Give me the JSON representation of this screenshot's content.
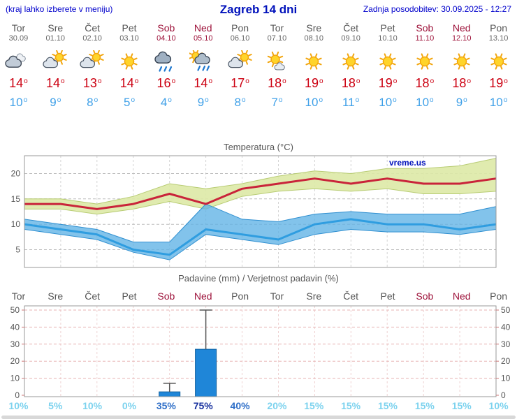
{
  "header": {
    "left_note": "(kraj lahko izberete v meniju)",
    "title": "Zagreb 14 dni",
    "updated_label": "Zadnja posodobitev: 30.09.2025 - 12:27"
  },
  "units": {
    "degree": "o",
    "percent": "%"
  },
  "forecast_days": [
    {
      "name": "Tor",
      "date": "30.09",
      "icon": "cloudy",
      "tmax": 14,
      "tmin": 10,
      "weekend": false
    },
    {
      "name": "Sre",
      "date": "01.10",
      "icon": "partly-cloudy",
      "tmax": 14,
      "tmin": 9,
      "weekend": false
    },
    {
      "name": "Čet",
      "date": "02.10",
      "icon": "partly-cloudy",
      "tmax": 13,
      "tmin": 8,
      "weekend": false
    },
    {
      "name": "Pet",
      "date": "03.10",
      "icon": "sunny",
      "tmax": 14,
      "tmin": 5,
      "weekend": false
    },
    {
      "name": "Sob",
      "date": "04.10",
      "icon": "rain",
      "tmax": 16,
      "tmin": 4,
      "weekend": true
    },
    {
      "name": "Ned",
      "date": "05.10",
      "icon": "sun-rain",
      "tmax": 14,
      "tmin": 9,
      "weekend": true
    },
    {
      "name": "Pon",
      "date": "06.10",
      "icon": "partly-cloudy",
      "tmax": 17,
      "tmin": 8,
      "weekend": false
    },
    {
      "name": "Tor",
      "date": "07.10",
      "icon": "mostly-sunny",
      "tmax": 18,
      "tmin": 7,
      "weekend": false
    },
    {
      "name": "Sre",
      "date": "08.10",
      "icon": "sunny",
      "tmax": 19,
      "tmin": 10,
      "weekend": false
    },
    {
      "name": "Čet",
      "date": "09.10",
      "icon": "sunny",
      "tmax": 18,
      "tmin": 11,
      "weekend": false
    },
    {
      "name": "Pet",
      "date": "10.10",
      "icon": "sunny",
      "tmax": 19,
      "tmin": 10,
      "weekend": false
    },
    {
      "name": "Sob",
      "date": "11.10",
      "icon": "sunny",
      "tmax": 18,
      "tmin": 10,
      "weekend": true
    },
    {
      "name": "Ned",
      "date": "12.10",
      "icon": "sunny",
      "tmax": 18,
      "tmin": 9,
      "weekend": true
    },
    {
      "name": "Pon",
      "date": "13.10",
      "icon": "sunny",
      "tmax": 19,
      "tmin": 10,
      "weekend": false
    }
  ],
  "chart_data": [
    {
      "type": "line",
      "title": "Temperatura (°C)",
      "watermark": "vreme.us",
      "categories": [
        "Tor",
        "Sre",
        "Čet",
        "Pet",
        "Sob",
        "Ned",
        "Pon",
        "Tor",
        "Sre",
        "Čet",
        "Pet",
        "Sob",
        "Ned",
        "Pon"
      ],
      "series": [
        {
          "name": "t_max",
          "color": "#c9243a",
          "values": [
            14,
            14,
            13,
            14,
            16,
            14,
            17,
            18,
            19,
            18,
            19,
            18,
            18,
            19
          ]
        },
        {
          "name": "t_min",
          "color": "#2f9de0",
          "values": [
            10,
            9,
            8,
            5,
            4,
            9,
            8,
            7,
            10,
            11,
            10,
            10,
            9,
            10
          ]
        },
        {
          "name": "t_max_range_high",
          "values": [
            15,
            15,
            14,
            15.5,
            18,
            17,
            18,
            19.5,
            20.5,
            20,
            21,
            21,
            21.5,
            23
          ]
        },
        {
          "name": "t_max_range_low",
          "values": [
            13,
            13,
            12,
            13,
            14.5,
            13,
            15.5,
            16.5,
            17,
            16.5,
            17,
            16,
            16,
            16.5
          ]
        },
        {
          "name": "t_min_range_high",
          "values": [
            11,
            10,
            9,
            6.5,
            6.5,
            14,
            11,
            10.5,
            12,
            12.5,
            12,
            12,
            12,
            13.5
          ]
        },
        {
          "name": "t_min_range_low",
          "values": [
            9,
            8,
            7,
            4.5,
            3,
            8,
            7,
            6,
            8,
            9,
            8.5,
            8.5,
            8,
            9
          ]
        }
      ],
      "yticks": [
        5,
        10,
        15,
        20
      ],
      "ylim": [
        1.5,
        23.5
      ],
      "grid": true,
      "legend": "none"
    },
    {
      "type": "bar",
      "title": "Padavine (mm) / Verjetnost padavin (%)",
      "categories": [
        "Tor",
        "Sre",
        "Čet",
        "Pet",
        "Sob",
        "Ned",
        "Pon",
        "Tor",
        "Sre",
        "Čet",
        "Pet",
        "Sob",
        "Ned",
        "Pon"
      ],
      "values": [
        0,
        0,
        0,
        0,
        2,
        27,
        0,
        0,
        0,
        0,
        0,
        0,
        0,
        0
      ],
      "range_max": [
        0,
        0,
        0,
        0,
        7,
        50,
        0,
        0,
        0,
        0,
        0,
        0,
        0,
        0
      ],
      "probability_pct": [
        10,
        5,
        10,
        0,
        35,
        75,
        40,
        20,
        15,
        15,
        15,
        15,
        15,
        10
      ],
      "yticks": [
        0,
        10,
        20,
        30,
        40,
        50
      ],
      "ylim": [
        0,
        52
      ],
      "grid": true,
      "legend": "none"
    }
  ],
  "colors": {
    "accent_blue": "#0000cc",
    "weekend_red": "#9d1139",
    "temp_max_red": "#cc0011",
    "temp_min_blue": "#3fa0e8",
    "max_band_fill": "#dde9a6",
    "max_band_edge": "#b8cc74",
    "min_band_fill": "#5fb2e6",
    "min_band_edge": "#2f8fd0",
    "max_line": "#c9243a",
    "min_line": "#2f9de0",
    "bar_fill": "#1f86d8",
    "bar_edge": "#12619f",
    "prob_low": "#7cd2ee",
    "prob_mid": "#2f6fc8",
    "prob_high": "#17309e",
    "grid_gray": "#bdbdbd",
    "grid_pink": "#e7b3b3",
    "axis_border": "#999999",
    "label_gray": "#555555"
  }
}
